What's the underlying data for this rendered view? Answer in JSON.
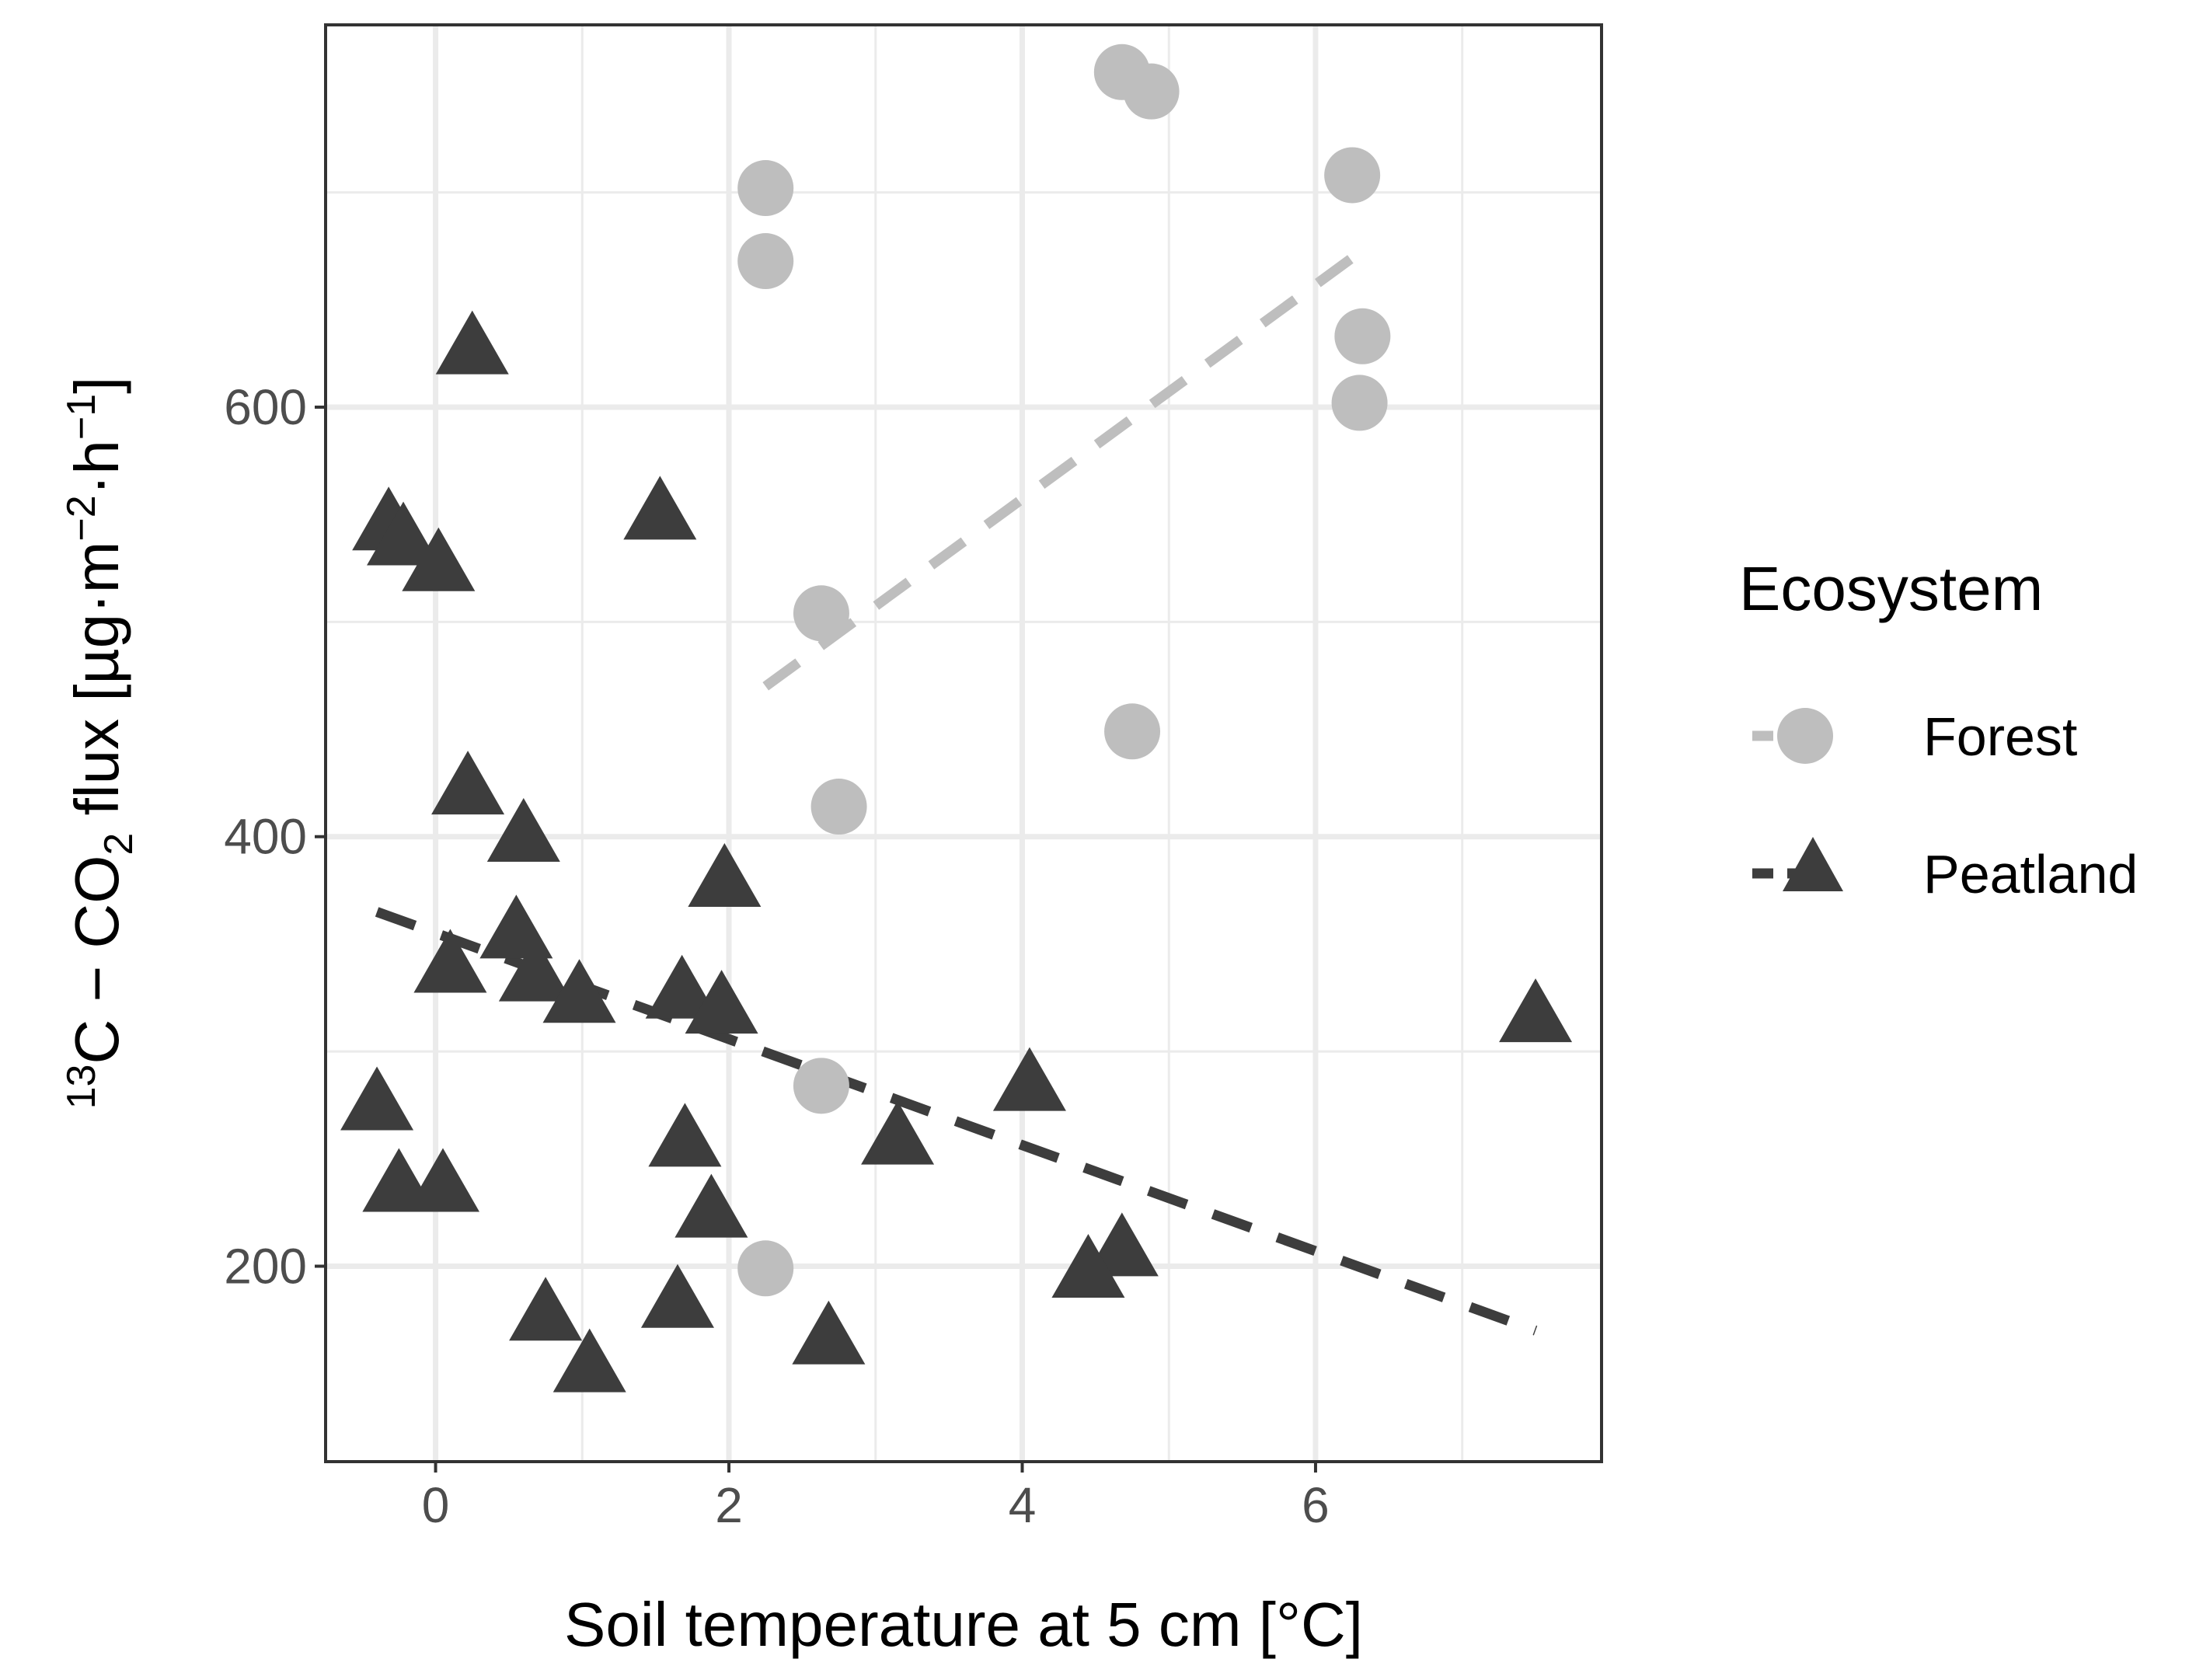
{
  "chart_data": {
    "type": "scatter",
    "xlabel": "Soil temperature at 5 cm [°C]",
    "ylabel": {
      "iso_mass": "13",
      "iso_rest": "C − CO",
      "co2_sub": "2",
      "flux_text": " flux [µg·m",
      "m_exp": "−2",
      "h_text": "·h",
      "h_exp": "−1",
      "close": "]"
    },
    "xlim": [
      -0.75,
      7.95
    ],
    "ylim": [
      109,
      778
    ],
    "x_major_ticks": [
      0,
      2,
      4,
      6
    ],
    "x_minor_ticks": [
      -1,
      1,
      3,
      5,
      7
    ],
    "y_major_ticks": [
      200,
      400,
      600
    ],
    "y_minor_ticks": [
      100,
      300,
      500,
      700
    ],
    "x_tick_labels": [
      "0",
      "2",
      "4",
      "6"
    ],
    "y_tick_labels": [
      "200",
      "400",
      "600"
    ],
    "grid": true,
    "legend_position": "right",
    "legend": {
      "title": "Ecosystem",
      "entries": [
        "Forest",
        "Peatland"
      ]
    },
    "colors": {
      "forest": "#bebebe",
      "peatland": "#3d3d3d",
      "grid": "#ebebeb",
      "panel_border": "#333333"
    },
    "series": [
      {
        "name": "Forest",
        "marker": "circle",
        "points": [
          {
            "x": 4.68,
            "y": 756
          },
          {
            "x": 4.88,
            "y": 747
          },
          {
            "x": 2.25,
            "y": 702
          },
          {
            "x": 6.25,
            "y": 708
          },
          {
            "x": 2.25,
            "y": 668
          },
          {
            "x": 6.32,
            "y": 633
          },
          {
            "x": 6.3,
            "y": 602
          },
          {
            "x": 2.63,
            "y": 504
          },
          {
            "x": 4.75,
            "y": 449
          },
          {
            "x": 2.75,
            "y": 414
          },
          {
            "x": 2.63,
            "y": 284
          },
          {
            "x": 2.25,
            "y": 199
          }
        ],
        "trend": {
          "x": [
            2.25,
            6.3
          ],
          "y": [
            470,
            672
          ]
        }
      },
      {
        "name": "Peatland",
        "marker": "triangle",
        "points": [
          {
            "x": 0.25,
            "y": 628
          },
          {
            "x": 1.53,
            "y": 551
          },
          {
            "x": -0.32,
            "y": 546
          },
          {
            "x": -0.22,
            "y": 539
          },
          {
            "x": 0.02,
            "y": 527
          },
          {
            "x": 0.22,
            "y": 423
          },
          {
            "x": 0.6,
            "y": 401
          },
          {
            "x": 1.97,
            "y": 380
          },
          {
            "x": 0.55,
            "y": 356
          },
          {
            "x": 0.1,
            "y": 340
          },
          {
            "x": 0.68,
            "y": 336
          },
          {
            "x": 0.98,
            "y": 326
          },
          {
            "x": 1.68,
            "y": 328
          },
          {
            "x": 1.95,
            "y": 321
          },
          {
            "x": 7.5,
            "y": 317
          },
          {
            "x": 4.05,
            "y": 285
          },
          {
            "x": -0.4,
            "y": 276
          },
          {
            "x": 1.7,
            "y": 259
          },
          {
            "x": 3.15,
            "y": 260
          },
          {
            "x": -0.25,
            "y": 238
          },
          {
            "x": 0.05,
            "y": 238
          },
          {
            "x": 1.88,
            "y": 226
          },
          {
            "x": 4.68,
            "y": 208
          },
          {
            "x": 4.45,
            "y": 198
          },
          {
            "x": 1.65,
            "y": 184
          },
          {
            "x": 0.75,
            "y": 178
          },
          {
            "x": 2.68,
            "y": 167
          },
          {
            "x": 1.05,
            "y": 154
          }
        ],
        "trend": {
          "x": [
            -0.4,
            7.5
          ],
          "y": [
            365,
            170
          ]
        }
      }
    ]
  }
}
